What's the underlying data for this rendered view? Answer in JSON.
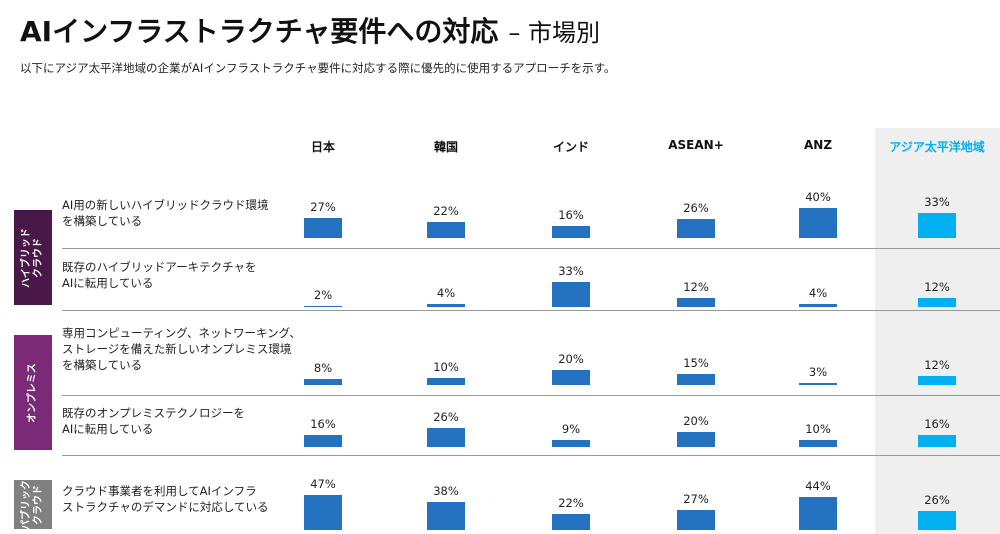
{
  "chart_data": {
    "type": "bar-matrix",
    "title": "AIインフラストラクチャ要件への対応",
    "title_suffix": "– 市場別",
    "subtitle": "以下にアジア太平洋地域の企業がAIインフラストラクチャ要件に対応する際に優先的に使用するアプローチを示す。",
    "groups": [
      {
        "label": [
          "ハイブリッド",
          "クラウド"
        ],
        "color": "#4a1848",
        "rows": [
          0,
          1
        ]
      },
      {
        "label": [
          "オンプレミス"
        ],
        "color": "#7b2a78",
        "rows": [
          2,
          3
        ]
      },
      {
        "label": [
          "パブリック",
          "クラウド"
        ],
        "color": "#808080",
        "rows": [
          4
        ]
      }
    ],
    "categories": [
      [
        "AI用の新しいハイブリッドクラウド環境",
        "を構築している"
      ],
      [
        "既存のハイブリッドアーキテクチャを",
        "AIに転用している"
      ],
      [
        "専用コンピューティング、ネットワーキング、",
        "ストレージを備えた新しいオンプレミス環境",
        "を構築している"
      ],
      [
        "既存のオンプレミステクノロジーを",
        "AIに転用している"
      ],
      [
        "クラウド事業者を利用してAIインフラ",
        "ストラクチャのデマンドに対応している"
      ]
    ],
    "series": [
      {
        "name": "日本",
        "color": "#2472c0",
        "values": [
          27,
          2,
          8,
          16,
          47
        ],
        "value_labels": [
          "27%",
          "2%",
          "8%",
          "16%",
          "47%"
        ]
      },
      {
        "name": "韓国",
        "color": "#2472c0",
        "values": [
          22,
          4,
          10,
          26,
          38
        ],
        "value_labels": [
          "22%",
          "4%",
          "10%",
          "26%",
          "38%"
        ]
      },
      {
        "name": "インド",
        "color": "#2472c0",
        "values": [
          16,
          33,
          20,
          9,
          22
        ],
        "value_labels": [
          "16%",
          "33%",
          "20%",
          "9%",
          "22%"
        ]
      },
      {
        "name": "ASEAN+",
        "color": "#2472c0",
        "values": [
          26,
          12,
          15,
          20,
          27
        ],
        "value_labels": [
          "26%",
          "12%",
          "15%",
          "20%",
          "27%"
        ]
      },
      {
        "name": "ANZ",
        "color": "#2472c0",
        "values": [
          40,
          4,
          3,
          10,
          44
        ],
        "value_labels": [
          "40%",
          "4%",
          "3%",
          "10%",
          "44%"
        ]
      },
      {
        "name": "アジア太平洋地域",
        "color": "#00b0f0",
        "values": [
          33,
          12,
          12,
          16,
          26
        ],
        "value_labels": [
          "33%",
          "12%",
          "12%",
          "16%",
          "26%"
        ]
      }
    ]
  }
}
